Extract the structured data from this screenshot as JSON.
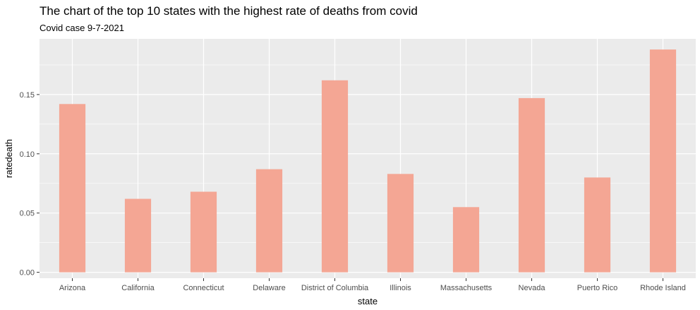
{
  "chart_data": {
    "type": "bar",
    "title": "The chart of the top 10 states with the highest rate of deaths from covid",
    "subtitle": "Covid case 9-7-2021",
    "xlabel": "state",
    "ylabel": "ratedeath",
    "categories": [
      "Arizona",
      "California",
      "Connecticut",
      "Delaware",
      "District of Columbia",
      "Illinois",
      "Massachusetts",
      "Nevada",
      "Puerto Rico",
      "Rhode Island"
    ],
    "values": [
      0.142,
      0.062,
      0.068,
      0.087,
      0.162,
      0.083,
      0.055,
      0.147,
      0.08,
      0.188
    ],
    "ylim": [
      -0.005,
      0.197
    ],
    "yticks": [
      0.0,
      0.05,
      0.1,
      0.15
    ],
    "ytick_labels": [
      "0.00",
      "0.05",
      "0.10",
      "0.15"
    ],
    "grid": true,
    "colors": {
      "bar": "#f4a694",
      "panel": "#ebebeb",
      "grid": "#ffffff"
    }
  }
}
